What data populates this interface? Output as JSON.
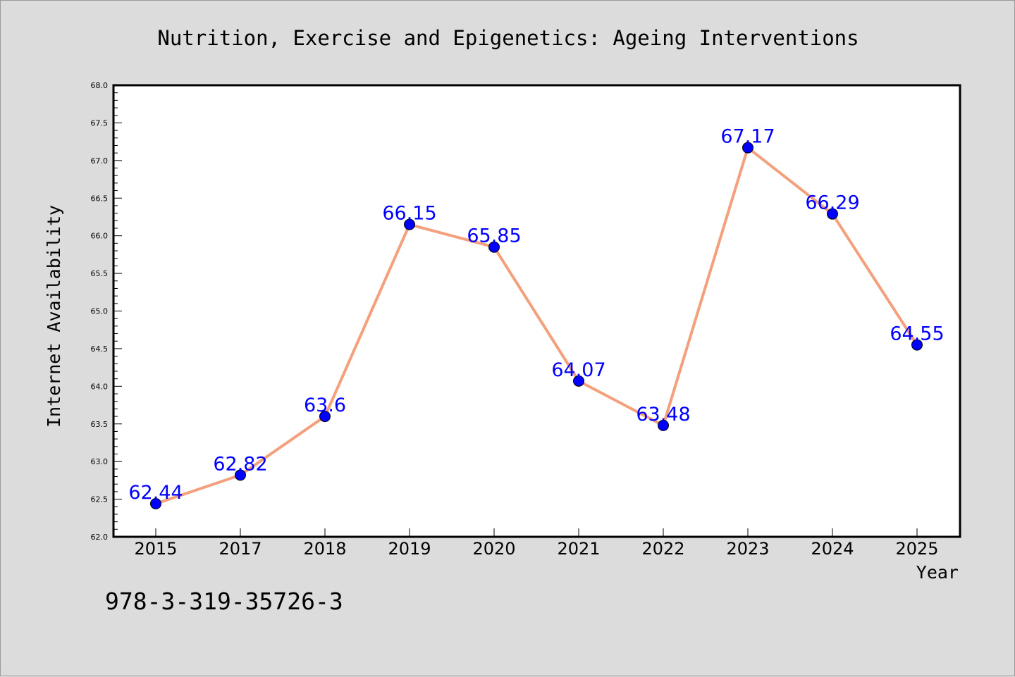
{
  "chart_data": {
    "type": "line",
    "title": "Nutrition, Exercise and Epigenetics: Ageing Interventions",
    "xlabel": "Year",
    "ylabel": "Internet Availability",
    "categories": [
      "2015",
      "2017",
      "2018",
      "2019",
      "2020",
      "2021",
      "2022",
      "2023",
      "2024",
      "2025"
    ],
    "series": [
      {
        "values": [
          62.44,
          62.82,
          63.6,
          66.15,
          65.85,
          64.07,
          63.48,
          67.17,
          66.29,
          64.55
        ],
        "labels": [
          "62.44",
          "62.82",
          "63.6",
          "66.15",
          "65.85",
          "64.07",
          "63.48",
          "67.17",
          "66.29",
          "64.55"
        ],
        "line_color": "#f4a07c",
        "marker_color": "#0000ff",
        "label_color": "#0000ff"
      }
    ],
    "ylim": [
      62.0,
      68.0
    ],
    "yticks": [
      "62.0",
      "62.5",
      "63.0",
      "63.5",
      "64.0",
      "64.5",
      "65.0",
      "65.5",
      "66.0",
      "66.5",
      "67.0",
      "67.5",
      "68.0"
    ],
    "grid": false,
    "legend": "none"
  },
  "caption": "978-3-319-35726-3",
  "colors": {
    "background": "#dcdcdc",
    "plot_background": "#ffffff",
    "axis": "#000000"
  }
}
